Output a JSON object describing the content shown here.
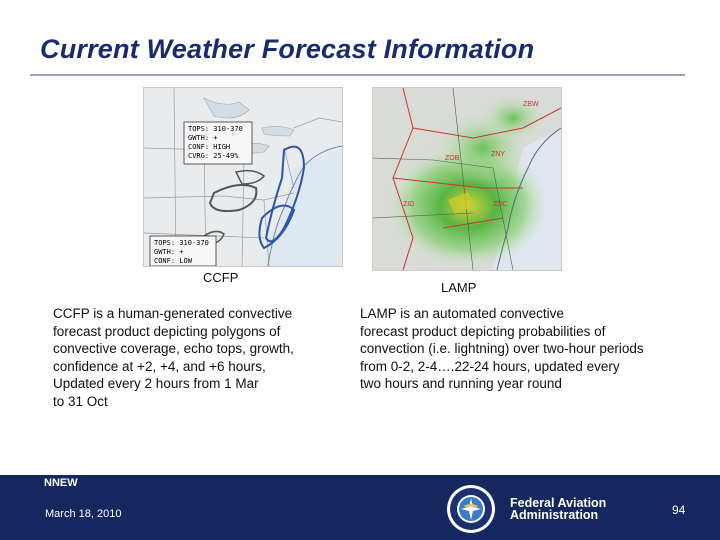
{
  "slide": {
    "title": "Current Weather Forecast Information"
  },
  "ccfp": {
    "map_labels": {
      "box1": [
        "TOPS: 310-370",
        "GWTH: +",
        "CONF: HIGH",
        "CVRG: 25-49%"
      ],
      "box2": [
        "TOPS: 310-370",
        "GWTH: +",
        "CONF: LOW"
      ]
    },
    "caption": "CCFP",
    "description": [
      "CCFP is a human-generated convective",
      "forecast product depicting polygons of",
      "convective coverage, echo tops, growth,",
      "confidence at +2, +4, and +6 hours,",
      "Updated every 2 hours from 1 Mar",
      "to 31 Oct"
    ]
  },
  "lamp": {
    "map_labels": [
      "ZBW",
      "ZOB",
      "ZNY",
      "ZID",
      "ZDC"
    ],
    "caption": "LAMP",
    "description": [
      "LAMP is an automated convective",
      "forecast product depicting probabilities of",
      "convection (i.e. lightning) over two-hour periods",
      "from 0-2, 2-4….22-24 hours, updated every",
      "two hours and running year round"
    ]
  },
  "footer": {
    "label": "NNEW",
    "date": "March 18, 2010",
    "agency_line1": "Federal Aviation",
    "agency_line2": "Administration",
    "page_number": "94"
  },
  "colors": {
    "title": "#1a2a6c",
    "footer_bg": "#14275e"
  }
}
